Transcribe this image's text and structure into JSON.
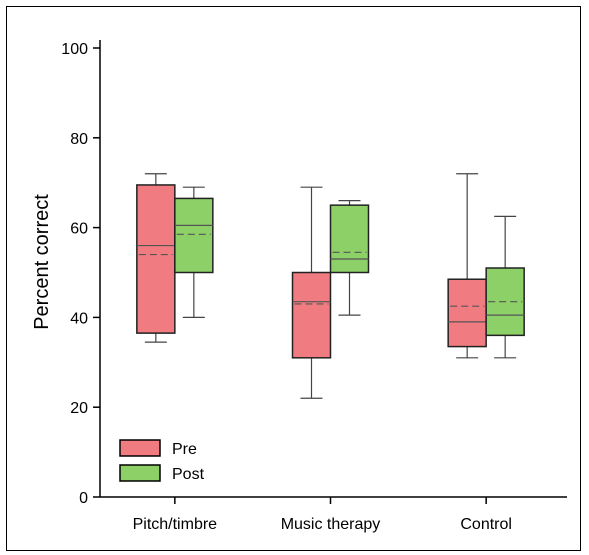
{
  "chart_data": {
    "type": "box",
    "ylabel": "Percent correct",
    "ylim": [
      0,
      100
    ],
    "yticks": [
      0,
      20,
      40,
      60,
      80,
      100
    ],
    "categories": [
      "Pitch/timbre",
      "Music therapy",
      "Control"
    ],
    "legend_position": "bottom-left",
    "series": [
      {
        "name": "Pre",
        "color": "#f07b80",
        "boxes": [
          {
            "min": 34.5,
            "q1": 36.5,
            "median": 56,
            "mean": 54,
            "q3": 69.5,
            "max": 72
          },
          {
            "min": 22,
            "q1": 31,
            "median": 43.5,
            "mean": 43,
            "q3": 50,
            "max": 69
          },
          {
            "min": 31,
            "q1": 33.5,
            "median": 39,
            "mean": 42.5,
            "q3": 48.5,
            "max": 72
          }
        ]
      },
      {
        "name": "Post",
        "color": "#8dd067",
        "boxes": [
          {
            "min": 40,
            "q1": 50,
            "median": 60.5,
            "mean": 58.5,
            "q3": 66.5,
            "max": 69
          },
          {
            "min": 40.5,
            "q1": 50,
            "median": 53,
            "mean": 54.5,
            "q3": 65,
            "max": 66
          },
          {
            "min": 31,
            "q1": 36,
            "median": 40.5,
            "mean": 43.5,
            "q3": 51,
            "max": 62.5
          }
        ]
      }
    ]
  }
}
